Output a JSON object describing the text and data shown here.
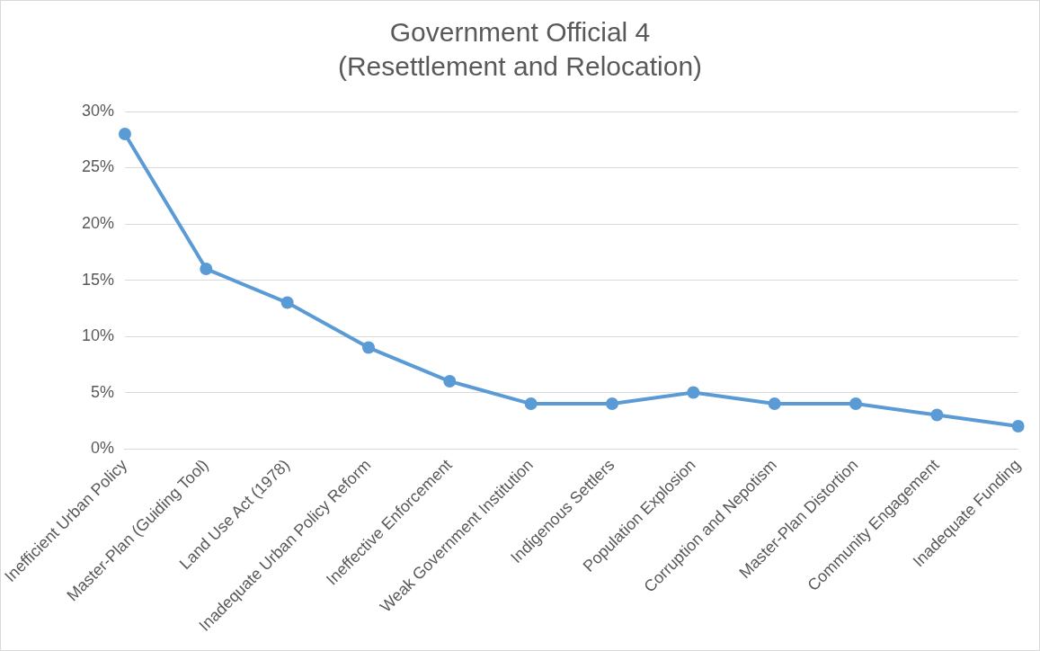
{
  "chart_data": {
    "type": "line",
    "title": "Government Official 4\n(Resettlement and Relocation)",
    "categories": [
      "Inefficient Urban Policy",
      "Master-Plan (Guiding Tool)",
      "Land Use Act (1978)",
      "Inadequate Urban Policy Reform",
      "Ineffective Enforcement",
      "Weak Government Institution",
      "Indigenous Settlers",
      "Population Explosion",
      "Corruption and Nepotism",
      "Master-Plan Distortion",
      "Community Engagement",
      "Inadequate Funding"
    ],
    "series": [
      {
        "color": "#5b9bd5",
        "values": [
          28,
          16,
          13,
          9,
          6,
          4,
          4,
          5,
          4,
          4,
          3,
          2
        ]
      }
    ],
    "ylim": [
      0,
      30
    ],
    "yticks": [
      {
        "value": 0,
        "label": "0%"
      },
      {
        "value": 5,
        "label": "5%"
      },
      {
        "value": 10,
        "label": "10%"
      },
      {
        "value": 15,
        "label": "15%"
      },
      {
        "value": 20,
        "label": "20%"
      },
      {
        "value": 25,
        "label": "25%"
      },
      {
        "value": 30,
        "label": "30%"
      }
    ],
    "grid": "y",
    "legend": false,
    "marker": "circle",
    "line_style": "solid"
  }
}
